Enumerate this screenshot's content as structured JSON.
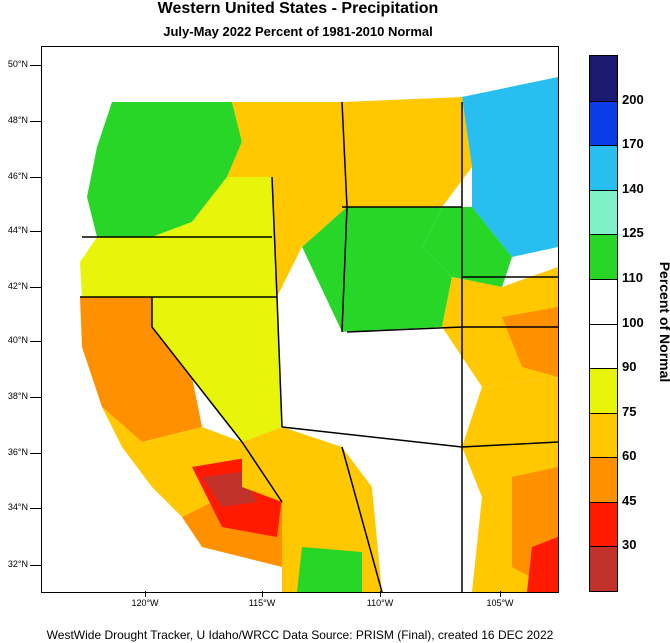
{
  "title": "Western United States - Precipitation",
  "subtitle": "July-May 2022  Percent of 1981-2010 Normal",
  "lat_labels": [
    "50°N",
    "48°N",
    "46°N",
    "44°N",
    "42°N",
    "40°N",
    "38°N",
    "36°N",
    "34°N",
    "32°N"
  ],
  "lon_labels": [
    "120°W",
    "115°W",
    "110°W",
    "105°W"
  ],
  "colorbar": {
    "title": "Percent of Normal",
    "labels": [
      "200",
      "170",
      "140",
      "125",
      "110",
      "100",
      "90",
      "75",
      "60",
      "45",
      "30"
    ],
    "bins": [
      {
        "color": "#1a1a70"
      },
      {
        "color": "#0a3de8"
      },
      {
        "color": "#28bff0"
      },
      {
        "color": "#7ff0c8"
      },
      {
        "color": "#28d628"
      },
      {
        "color": "#ffffff"
      },
      {
        "color": "#ffffff"
      },
      {
        "color": "#e8f50a"
      },
      {
        "color": "#ffc800"
      },
      {
        "color": "#ff9000"
      },
      {
        "color": "#ff1a00"
      },
      {
        "color": "#c0322a"
      }
    ]
  },
  "footer": "WestWide Drought Tracker, U Idaho/WRCC Data Source: PRISM (Final), created 16 DEC 2022"
}
